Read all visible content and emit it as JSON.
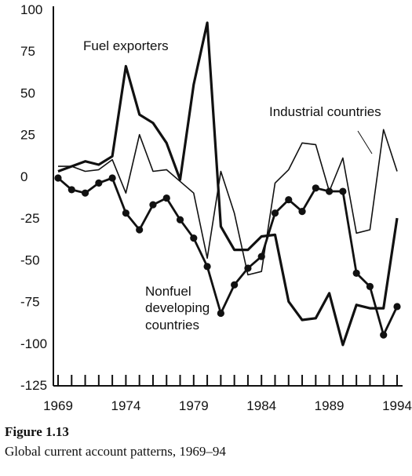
{
  "figure": {
    "number": "Figure 1.13",
    "caption": "Global current account patterns, 1969–94"
  },
  "chart_data": {
    "type": "line",
    "title": "",
    "xlabel": "",
    "ylabel": "",
    "xlim": [
      1969,
      1994
    ],
    "ylim": [
      -125,
      100
    ],
    "x_ticks": [
      1969,
      1974,
      1979,
      1984,
      1989,
      1994
    ],
    "y_ticks": [
      100,
      75,
      50,
      25,
      0,
      -25,
      -50,
      -75,
      -100,
      -125
    ],
    "y_tick_labels": [
      "100",
      "75",
      "50",
      "25",
      "0",
      "-25",
      "-50",
      "-75",
      "-100",
      "-125"
    ],
    "grid": false,
    "series": [
      {
        "name": "Fuel exporters",
        "style": "thick",
        "x": [
          1969,
          1970,
          1971,
          1972,
          1973,
          1974,
          1975,
          1976,
          1977,
          1978,
          1979,
          1980,
          1981,
          1982,
          1983,
          1984,
          1985,
          1986,
          1987,
          1988,
          1989,
          1990,
          1991,
          1992,
          1993,
          1994
        ],
        "y": [
          3,
          6,
          9,
          7,
          12,
          66,
          37,
          32,
          20,
          -2,
          55,
          92,
          -30,
          -44,
          -44,
          -36,
          -35,
          -75,
          -86,
          -85,
          -70,
          -101,
          -77,
          -79,
          -79,
          -25
        ]
      },
      {
        "name": "Industrial countries",
        "style": "thin",
        "x": [
          1969,
          1970,
          1971,
          1972,
          1973,
          1974,
          1975,
          1976,
          1977,
          1978,
          1979,
          1980,
          1981,
          1982,
          1983,
          1984,
          1985,
          1986,
          1987,
          1988,
          1989,
          1990,
          1991,
          1992,
          1993,
          1994
        ],
        "y": [
          6,
          6,
          3,
          4,
          10,
          -10,
          25,
          3,
          4,
          -3,
          -10,
          -49,
          3,
          -22,
          -59,
          -57,
          -4,
          4,
          20,
          19,
          -9,
          11,
          -34,
          -32,
          28,
          3
        ]
      },
      {
        "name": "Nonfuel developing countries",
        "style": "dots",
        "x": [
          1969,
          1970,
          1971,
          1972,
          1973,
          1974,
          1975,
          1976,
          1977,
          1978,
          1979,
          1980,
          1981,
          1982,
          1983,
          1984,
          1985,
          1986,
          1987,
          1988,
          1989,
          1990,
          1991,
          1992,
          1993,
          1994
        ],
        "y": [
          -1,
          -8,
          -10,
          -4,
          -1,
          -22,
          -32,
          -17,
          -13,
          -26,
          -37,
          -54,
          -82,
          -65,
          -55,
          -48,
          -22,
          -14,
          -21,
          -7,
          -9,
          -9,
          -58,
          -66,
          -95,
          -78
        ]
      }
    ],
    "annotations": [
      {
        "lines": [
          "Fuel exporters"
        ],
        "series": "Fuel exporters"
      },
      {
        "lines": [
          "Industrial countries"
        ],
        "series": "Industrial countries"
      },
      {
        "lines": [
          "Nonfuel",
          "developing",
          "countries"
        ],
        "series": "Nonfuel developing countries"
      }
    ]
  }
}
